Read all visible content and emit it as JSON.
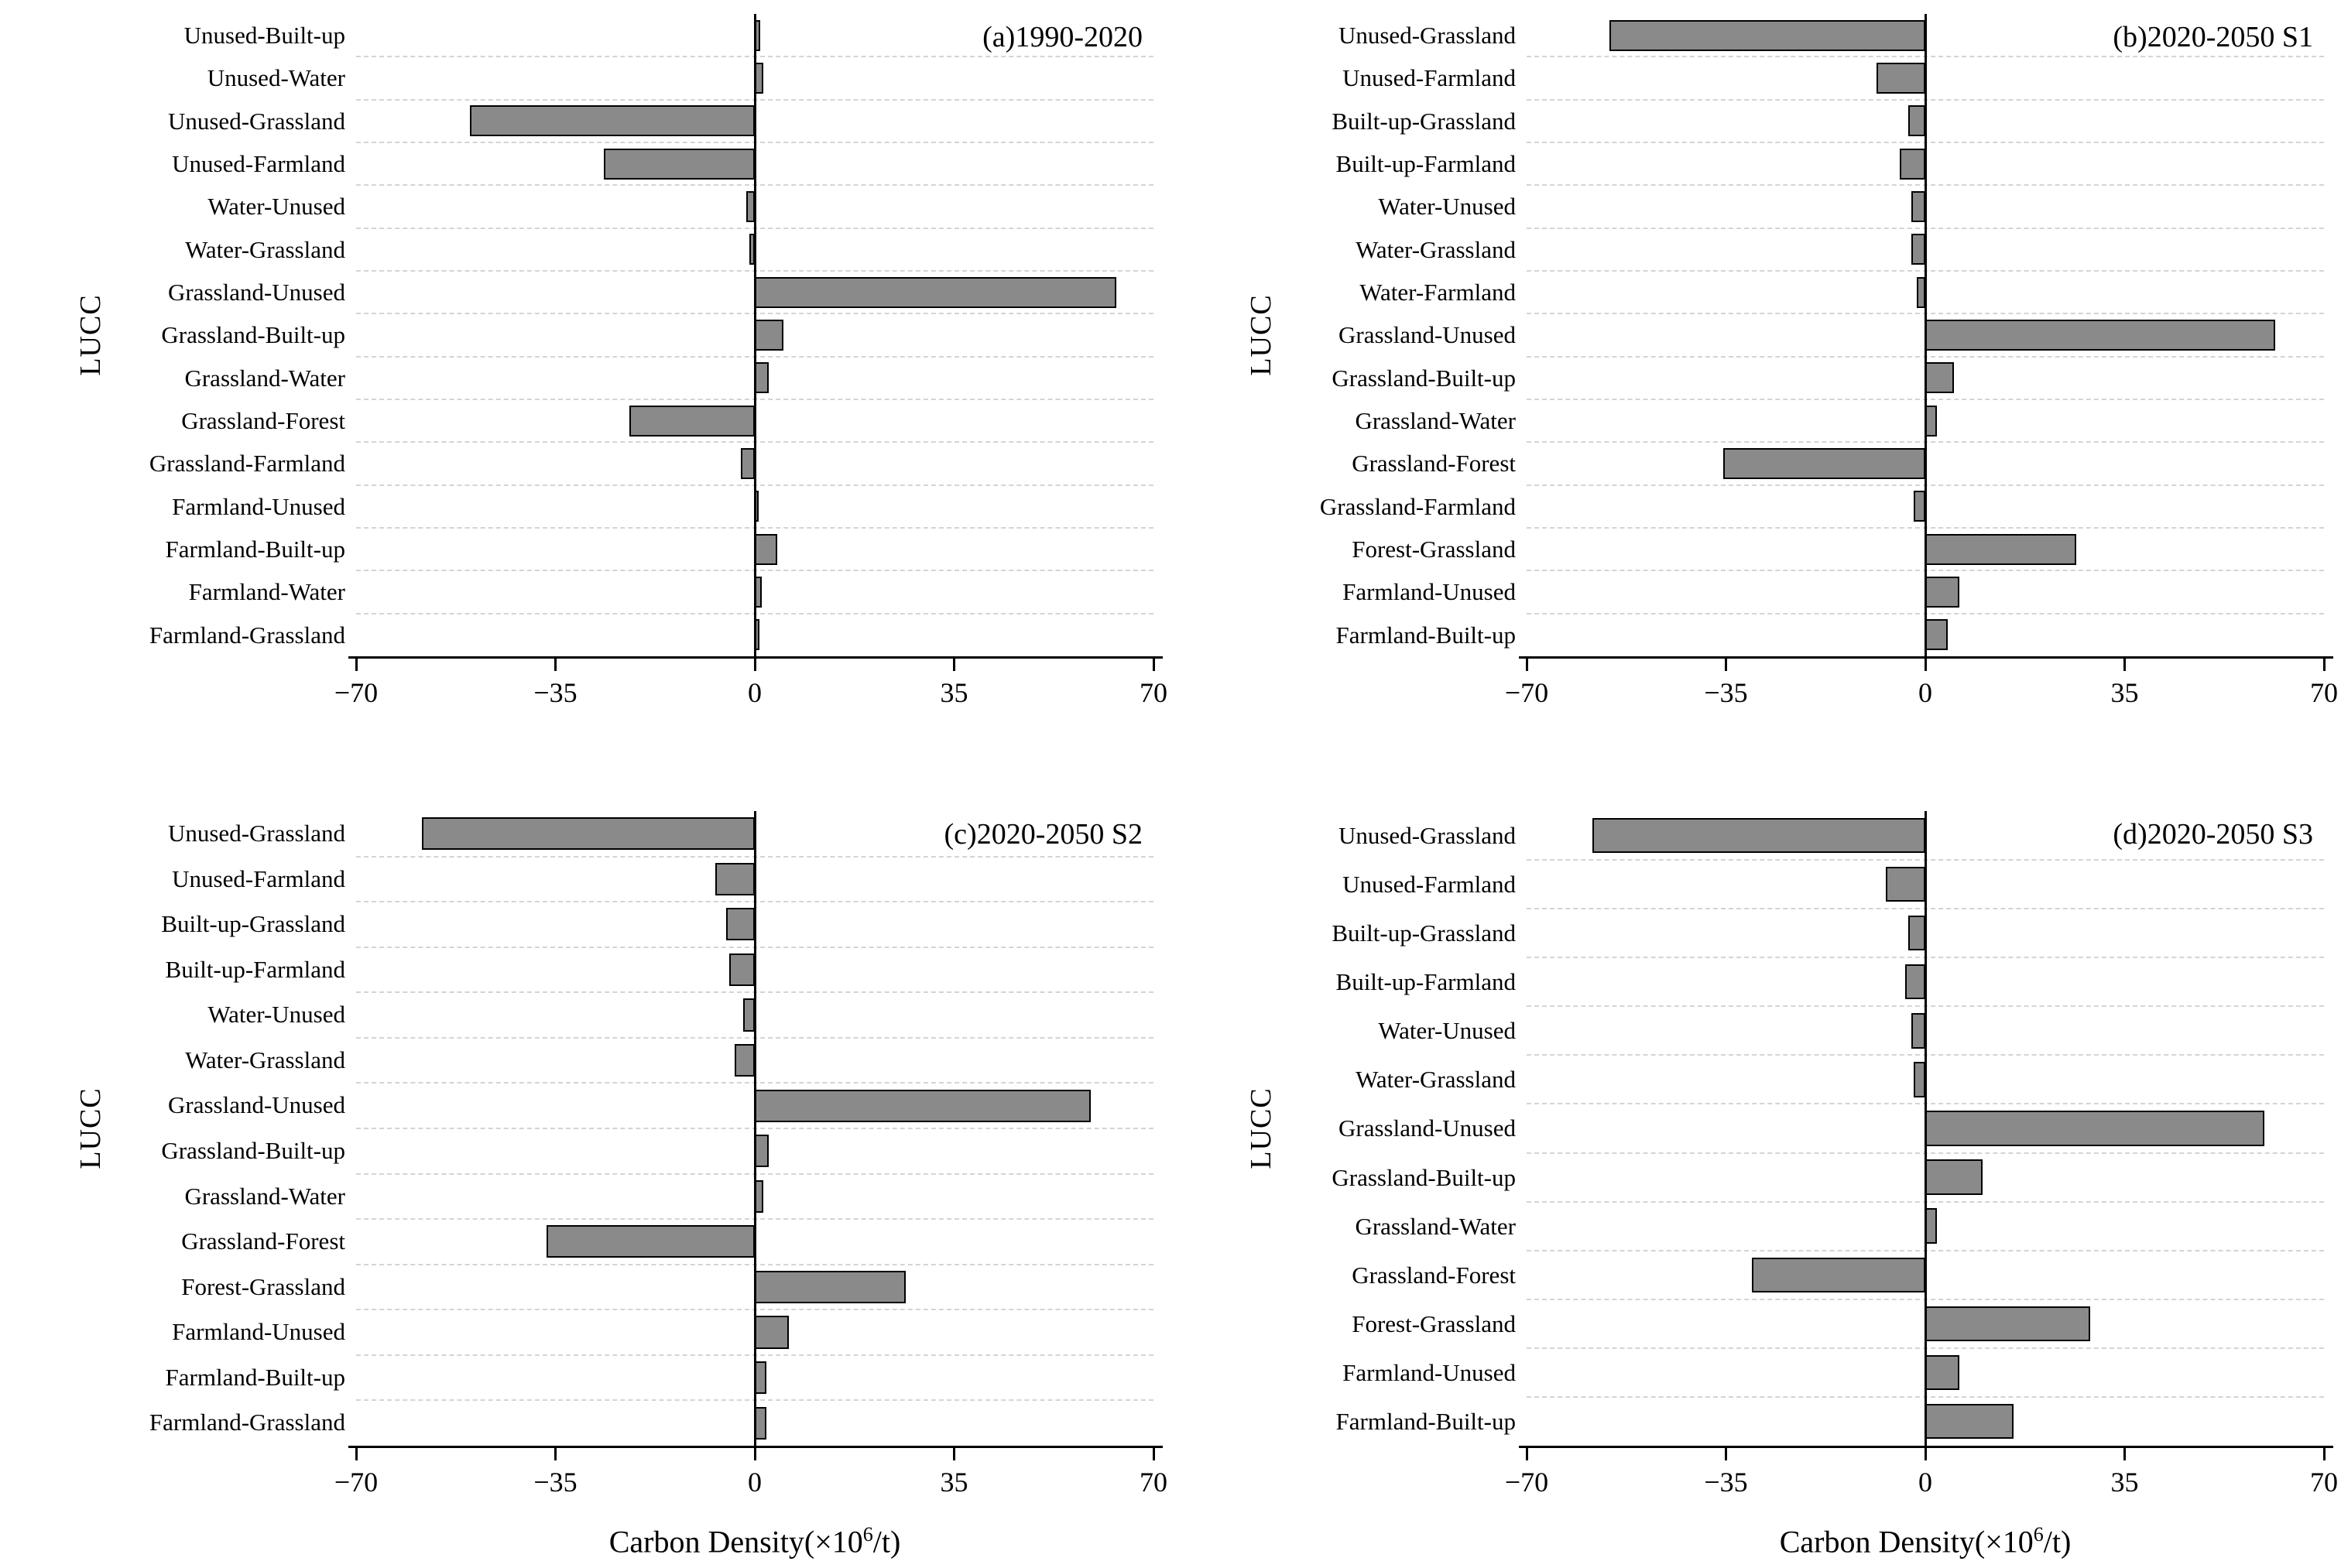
{
  "figure": {
    "background": "#ffffff",
    "bar_fill": "#8a8a8a",
    "bar_border": "#000000",
    "axis_color": "#000000",
    "gridline_color": "#d4d4d4"
  },
  "chart_data": [
    {
      "id": "a",
      "type": "bar",
      "orientation": "horizontal",
      "title": "(a)1990-2020",
      "ylabel": "LUCC",
      "xlabel": "",
      "xlim": [
        -70,
        70
      ],
      "xticks": [
        -70,
        -35,
        0,
        35,
        70
      ],
      "xtick_labels": [
        "−70",
        "−35",
        "0",
        "35",
        "70"
      ],
      "grid": "row-separators-dashed",
      "legend": "none",
      "categories": [
        "Unused-Built-up",
        "Unused-Water",
        "Unused-Grassland",
        "Unused-Farmland",
        "Water-Unused",
        "Water-Grassland",
        "Grassland-Unused",
        "Grassland-Built-up",
        "Grassland-Water",
        "Grassland-Forest",
        "Grassland-Farmland",
        "Farmland-Unused",
        "Farmland-Built-up",
        "Farmland-Water",
        "Farmland-Grassland"
      ],
      "values": [
        1,
        1.5,
        -50,
        -26.5,
        -1.5,
        -1,
        63.5,
        5,
        2.5,
        -22,
        -2.5,
        0.7,
        4,
        1.2,
        0.8
      ]
    },
    {
      "id": "b",
      "type": "bar",
      "orientation": "horizontal",
      "title": "(b)2020-2050 S1",
      "ylabel": "LUCC",
      "xlabel": "",
      "xlim": [
        -70,
        70
      ],
      "xticks": [
        -70,
        -35,
        0,
        35,
        70
      ],
      "xtick_labels": [
        "−70",
        "−35",
        "0",
        "35",
        "70"
      ],
      "grid": "row-separators-dashed",
      "legend": "none",
      "categories": [
        "Unused-Grassland",
        "Unused-Farmland",
        "Built-up-Grassland",
        "Built-up-Farmland",
        "Water-Unused",
        "Water-Grassland",
        "Water-Farmland",
        "Grassland-Unused",
        "Grassland-Built-up",
        "Grassland-Water",
        "Grassland-Forest",
        "Grassland-Farmland",
        "Forest-Grassland",
        "Farmland-Unused",
        "Farmland-Built-up"
      ],
      "values": [
        -55.5,
        -8.5,
        -3,
        -4.5,
        -2.5,
        -2.5,
        -1.5,
        61.5,
        5,
        2,
        -35.5,
        -2,
        26.5,
        6,
        4
      ]
    },
    {
      "id": "c",
      "type": "bar",
      "orientation": "horizontal",
      "title": "(c)2020-2050 S2",
      "ylabel": "LUCC",
      "xlabel": "Carbon Density(×10⁶/t)",
      "xlim": [
        -70,
        70
      ],
      "xticks": [
        -70,
        -35,
        0,
        35,
        70
      ],
      "xtick_labels": [
        "−70",
        "−35",
        "0",
        "35",
        "70"
      ],
      "grid": "row-separators-dashed",
      "legend": "none",
      "categories": [
        "Unused-Grassland",
        "Unused-Farmland",
        "Built-up-Grassland",
        "Built-up-Farmland",
        "Water-Unused",
        "Water-Grassland",
        "Grassland-Unused",
        "Grassland-Built-up",
        "Grassland-Water",
        "Grassland-Forest",
        "Forest-Grassland",
        "Farmland-Unused",
        "Farmland-Built-up",
        "Farmland-Grassland"
      ],
      "values": [
        -58.5,
        -7,
        -5,
        -4.5,
        -2,
        -3.5,
        59,
        2.5,
        1.5,
        -36.5,
        26.5,
        6,
        2,
        2
      ]
    },
    {
      "id": "d",
      "type": "bar",
      "orientation": "horizontal",
      "title": "(d)2020-2050 S3",
      "ylabel": "LUCC",
      "xlabel": "Carbon Density(×10⁶/t)",
      "xlim": [
        -70,
        70
      ],
      "xticks": [
        -70,
        -35,
        0,
        35,
        70
      ],
      "xtick_labels": [
        "−70",
        "−35",
        "0",
        "35",
        "70"
      ],
      "grid": "row-separators-dashed",
      "legend": "none",
      "categories": [
        "Unused-Grassland",
        "Unused-Farmland",
        "Built-up-Grassland",
        "Built-up-Farmland",
        "Water-Unused",
        "Water-Grassland",
        "Grassland-Unused",
        "Grassland-Built-up",
        "Grassland-Water",
        "Grassland-Forest",
        "Forest-Grassland",
        "Farmland-Unused",
        "Farmland-Built-up"
      ],
      "values": [
        -58.5,
        -7,
        -3,
        -3.5,
        -2.5,
        -2,
        59.5,
        10,
        2,
        -30.5,
        29,
        6,
        15.5
      ]
    }
  ]
}
